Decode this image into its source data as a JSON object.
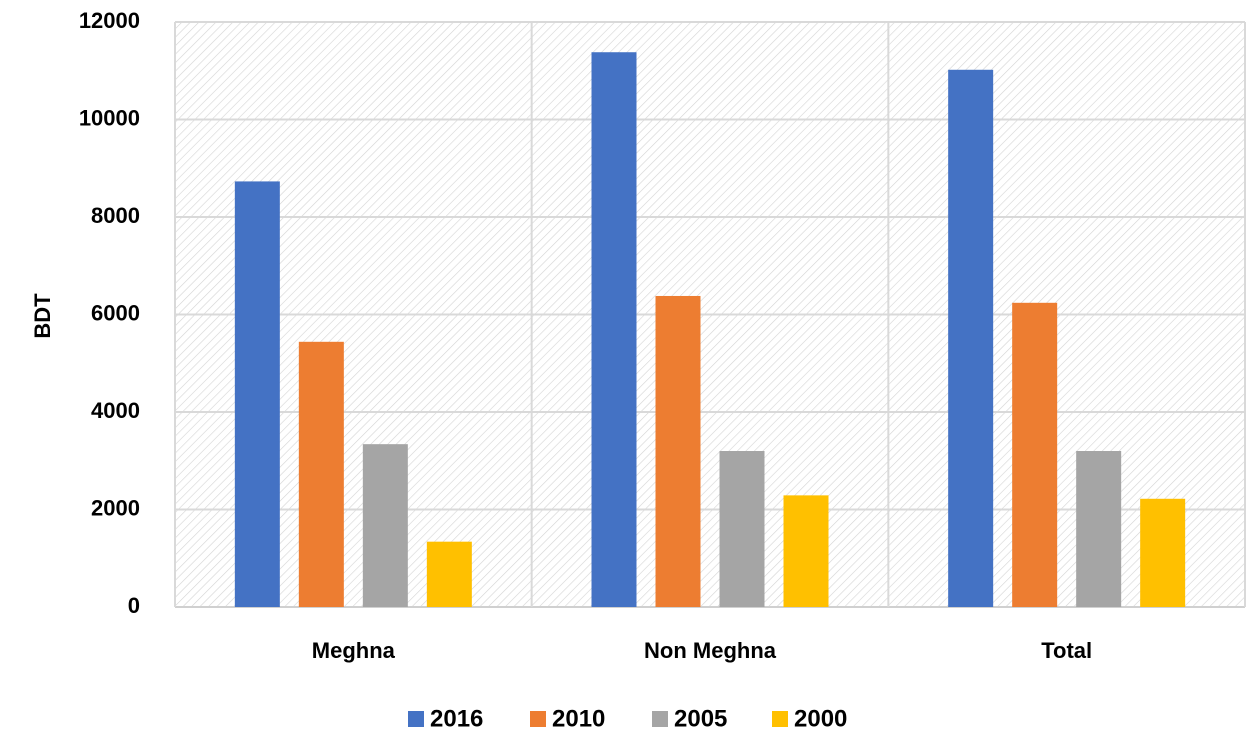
{
  "chart_data": {
    "type": "bar",
    "categories": [
      "Meghna",
      "Non Meghna",
      "Total"
    ],
    "series": [
      {
        "name": "2016",
        "color": "#4472C4",
        "values": [
          8730,
          11380,
          11020
        ]
      },
      {
        "name": "2010",
        "color": "#ED7D31",
        "values": [
          5440,
          6380,
          6240
        ]
      },
      {
        "name": "2005",
        "color": "#A5A5A5",
        "values": [
          3340,
          3200,
          3200
        ]
      },
      {
        "name": "2000",
        "color": "#FFC000",
        "values": [
          1340,
          2290,
          2220
        ]
      }
    ],
    "title": "",
    "xlabel": "",
    "ylabel": "BDT",
    "ylim": [
      0,
      12000
    ],
    "yticks": [
      "0",
      "2000",
      "4000",
      "6000",
      "8000",
      "10000",
      "12000"
    ],
    "grid": true,
    "legend_position": "bottom"
  }
}
